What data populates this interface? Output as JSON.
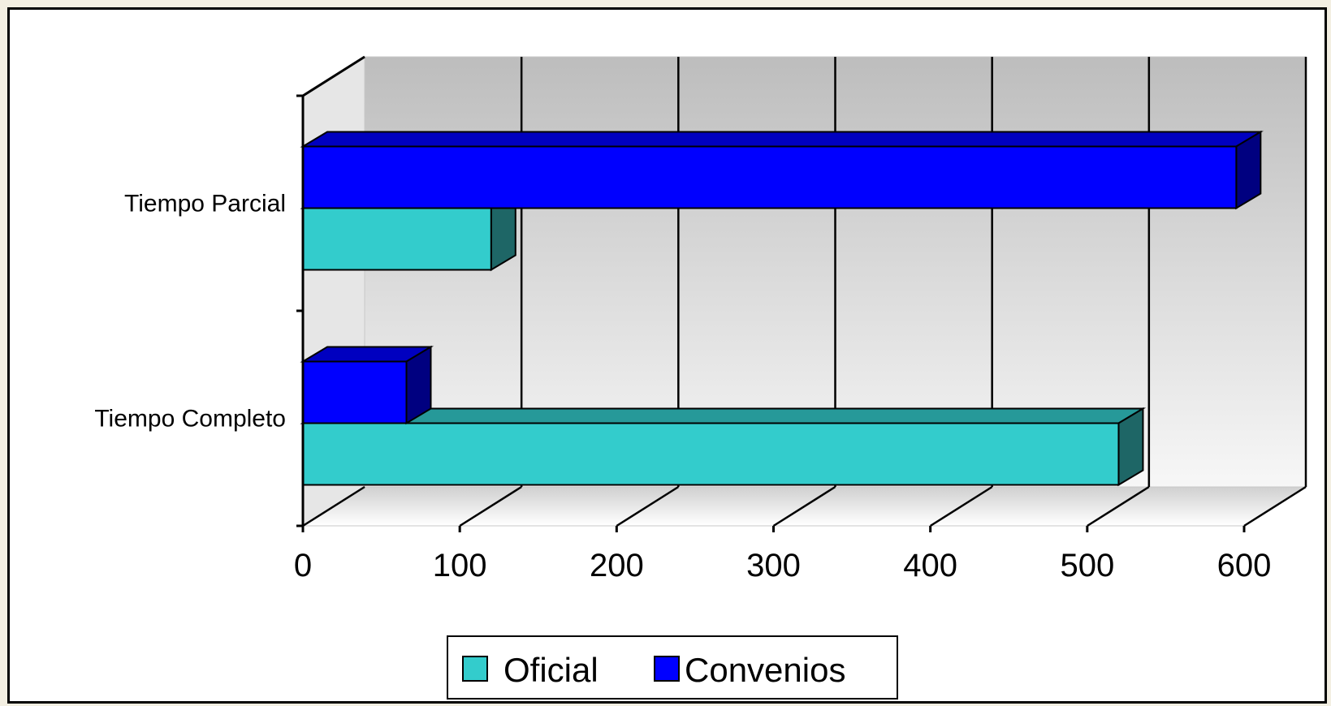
{
  "chart_data": {
    "type": "bar",
    "orientation": "horizontal",
    "style": "3d-clustered",
    "categories": [
      "Tiempo Parcial",
      "Tiempo Completo"
    ],
    "series": [
      {
        "name": "Oficial",
        "color": "#33CCCC",
        "values": [
          120,
          520
        ]
      },
      {
        "name": "Convenios",
        "color": "#0000FF",
        "values": [
          595,
          66
        ]
      }
    ],
    "xlim": [
      0,
      600
    ],
    "xticks": [
      "0",
      "100",
      "200",
      "300",
      "400",
      "500",
      "600"
    ],
    "grid": true,
    "legend_position": "bottom"
  }
}
